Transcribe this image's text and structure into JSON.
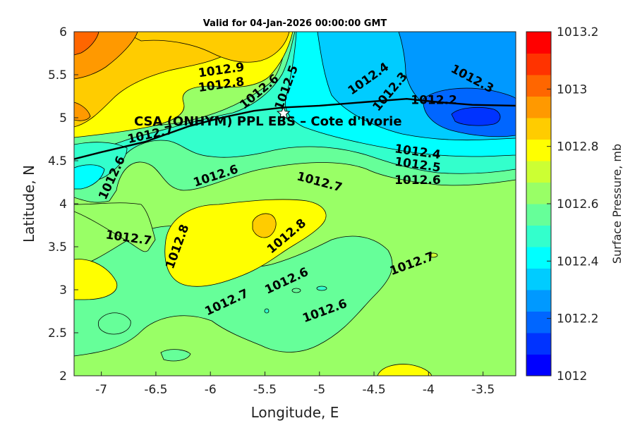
{
  "chart_data": {
    "type": "heatmap",
    "title": "Valid for 04-Jan-2026 00:00:00 GMT",
    "xlabel": "Longitude, E",
    "ylabel": "Latitude, N",
    "xlim": [
      -7.25,
      -3.2
    ],
    "ylim": [
      2,
      6
    ],
    "xticks": [
      -7,
      -6.5,
      -6,
      -5.5,
      -5,
      -4.5,
      -4,
      -3.5
    ],
    "xtick_labels": [
      "-7",
      "-6.5",
      "-6",
      "-5.5",
      "-5",
      "-4.5",
      "-4",
      "-3.5"
    ],
    "yticks": [
      2,
      2.5,
      3,
      3.5,
      4,
      4.5,
      5,
      5.5,
      6
    ],
    "ytick_labels": [
      "2",
      "2.5",
      "3",
      "3.5",
      "4",
      "4.5",
      "5",
      "5.5",
      "6"
    ],
    "colorbar": {
      "label": "Surface Pressure, mb",
      "range": [
        1012,
        1013.2
      ],
      "ticks": [
        1012,
        1012.2,
        1012.4,
        1012.6,
        1012.8,
        1013,
        1013.2
      ],
      "tick_labels": [
        "1012",
        "1012.2",
        "1012.4",
        "1012.6",
        "1012.8",
        "1013",
        "1013.2"
      ],
      "colors": [
        "#0000ff",
        "#0033ff",
        "#0066ff",
        "#0099ff",
        "#00ccff",
        "#00ffff",
        "#33ffcc",
        "#66ff99",
        "#99ff66",
        "#ccff33",
        "#ffff00",
        "#ffcc00",
        "#ff9900",
        "#ff6600",
        "#ff3300",
        "#ff0000"
      ]
    },
    "contour_labels": [
      {
        "text": "1012.9",
        "lon": -5.9,
        "lat": 5.55
      },
      {
        "text": "1012.8",
        "lon": -5.9,
        "lat": 5.38
      },
      {
        "text": "1012.6",
        "lon": -5.55,
        "lat": 5.3
      },
      {
        "text": "1012.5",
        "lon": -5.3,
        "lat": 5.35
      },
      {
        "text": "1012.4",
        "lon": -4.55,
        "lat": 5.45
      },
      {
        "text": "1012.3",
        "lon": -4.35,
        "lat": 5.3
      },
      {
        "text": "1012.3",
        "lon": -3.6,
        "lat": 5.45
      },
      {
        "text": "1012.2",
        "lon": -3.95,
        "lat": 5.2
      },
      {
        "text": "1012.7",
        "lon": -6.55,
        "lat": 4.8
      },
      {
        "text": "1012.4",
        "lon": -4.1,
        "lat": 4.6
      },
      {
        "text": "1012.5",
        "lon": -4.1,
        "lat": 4.45
      },
      {
        "text": "1012.6",
        "lon": -4.1,
        "lat": 4.27
      },
      {
        "text": "1012.6",
        "lon": -6.9,
        "lat": 4.3
      },
      {
        "text": "1012.6",
        "lon": -5.95,
        "lat": 4.32
      },
      {
        "text": "1012.7",
        "lon": -5.0,
        "lat": 4.25
      },
      {
        "text": "1012.7",
        "lon": -6.75,
        "lat": 3.6
      },
      {
        "text": "1012.8",
        "lon": -6.3,
        "lat": 3.5
      },
      {
        "text": "1012.8",
        "lon": -5.3,
        "lat": 3.62
      },
      {
        "text": "1012.6",
        "lon": -5.3,
        "lat": 3.1
      },
      {
        "text": "1012.7",
        "lon": -5.85,
        "lat": 2.85
      },
      {
        "text": "1012.6",
        "lon": -4.95,
        "lat": 2.75
      },
      {
        "text": "1012.7",
        "lon": -4.15,
        "lat": 3.3
      }
    ],
    "site": {
      "label": "CSA (ONHYM) PPL EBS  – Cote d'Ivorie",
      "lon": -5.33,
      "lat": 5.05
    },
    "coastline": [
      [
        -7.25,
        4.52
      ],
      [
        -7.0,
        4.6
      ],
      [
        -6.6,
        4.72
      ],
      [
        -6.2,
        4.9
      ],
      [
        -5.9,
        5.0
      ],
      [
        -5.6,
        5.08
      ],
      [
        -5.33,
        5.12
      ],
      [
        -5.0,
        5.14
      ],
      [
        -4.6,
        5.18
      ],
      [
        -4.2,
        5.22
      ],
      [
        -3.9,
        5.18
      ],
      [
        -3.6,
        5.15
      ],
      [
        -3.2,
        5.14
      ]
    ]
  }
}
